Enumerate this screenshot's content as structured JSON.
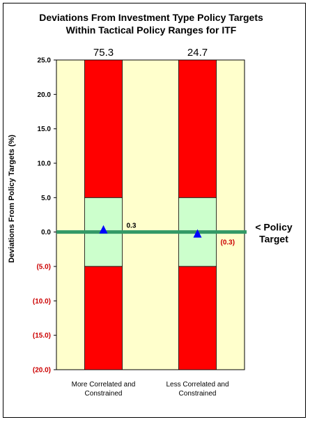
{
  "chart_data": {
    "type": "bar",
    "title": "Deviations From Investment Type Policy Targets",
    "subtitle": "Within Tactical Policy Ranges for  ITF",
    "ylabel": "Deviations From Policy Targets (%)",
    "xlabel": "",
    "ylim": [
      -20,
      25
    ],
    "y_ticks": [
      {
        "value": 25,
        "label": "25.0"
      },
      {
        "value": 20,
        "label": "20.0"
      },
      {
        "value": 15,
        "label": "15.0"
      },
      {
        "value": 10,
        "label": "10.0"
      },
      {
        "value": 5,
        "label": "5.0"
      },
      {
        "value": 0,
        "label": "0.0"
      },
      {
        "value": -5,
        "label": "(5.0)"
      },
      {
        "value": -10,
        "label": "(10.0)"
      },
      {
        "value": -15,
        "label": "(15.0)"
      },
      {
        "value": -20,
        "label": "(20.0)"
      }
    ],
    "categories": [
      {
        "line1": "More Correlated and",
        "line2": "Constrained",
        "top_label": "75.3",
        "deviation": 0.3,
        "deviation_label": "0.3"
      },
      {
        "line1": "Less Correlated and",
        "line2": "Constrained",
        "top_label": "24.7",
        "deviation": -0.3,
        "deviation_label": "(0.3)"
      }
    ],
    "tactical_range": [
      -5,
      5
    ],
    "reference_line": {
      "value": 0,
      "label_line1": "< Policy",
      "label_line2": "Target"
    },
    "grid": false,
    "colors": {
      "plot_background": "#ffffcc",
      "outside_range": "#ff0000",
      "within_range": "#ccffcc",
      "policy_target_line": "#339966",
      "marker": "#0000ff",
      "negative_label": "#cc0000"
    }
  }
}
